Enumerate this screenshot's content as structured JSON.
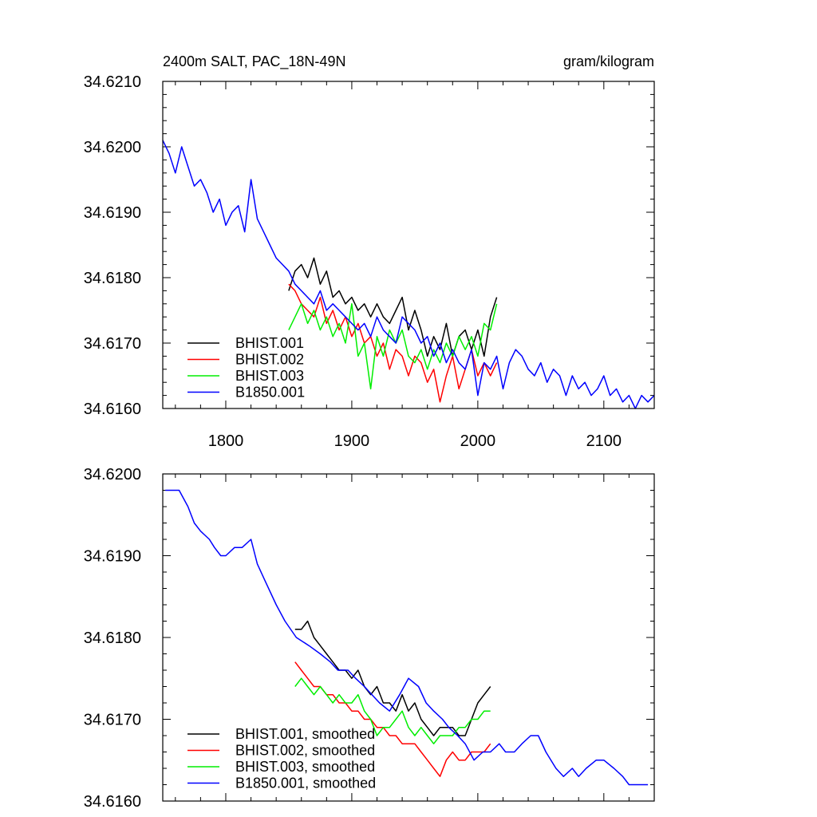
{
  "chart_data": [
    {
      "type": "line",
      "title": "2400m SALT, PAC_18N-49N",
      "units": "gram/kilogram",
      "xlim": [
        1750,
        2140
      ],
      "ylim": [
        34.616,
        34.621
      ],
      "x_ticks": [
        1800,
        1900,
        2000,
        2100
      ],
      "y_ticks": [
        "34.6160",
        "34.6170",
        "34.6180",
        "34.6190",
        "34.6200",
        "34.6210"
      ],
      "legend_position": "bottom-left",
      "series": [
        {
          "name": "BHIST.001",
          "color": "#000000",
          "x": [
            1850,
            1855,
            1860,
            1865,
            1870,
            1875,
            1880,
            1885,
            1890,
            1895,
            1900,
            1905,
            1910,
            1915,
            1920,
            1925,
            1930,
            1935,
            1940,
            1945,
            1950,
            1955,
            1960,
            1965,
            1970,
            1975,
            1980,
            1985,
            1990,
            1995,
            2000,
            2005,
            2010,
            2015
          ],
          "y": [
            34.6178,
            34.6181,
            34.6182,
            34.618,
            34.6183,
            34.6179,
            34.6181,
            34.6177,
            34.6178,
            34.6176,
            34.6177,
            34.6175,
            34.6176,
            34.6174,
            34.6176,
            34.6174,
            34.6173,
            34.6175,
            34.6177,
            34.6172,
            34.6175,
            34.6172,
            34.6168,
            34.6171,
            34.6169,
            34.6173,
            34.6168,
            34.6171,
            34.6172,
            34.6169,
            34.6172,
            34.6168,
            34.6174,
            34.6177
          ]
        },
        {
          "name": "BHIST.002",
          "color": "#ff0000",
          "x": [
            1850,
            1855,
            1860,
            1865,
            1870,
            1875,
            1880,
            1885,
            1890,
            1895,
            1900,
            1905,
            1910,
            1915,
            1920,
            1925,
            1930,
            1935,
            1940,
            1945,
            1950,
            1955,
            1960,
            1965,
            1970,
            1975,
            1980,
            1985,
            1990,
            1995,
            2000,
            2005,
            2010,
            2015
          ],
          "y": [
            34.6179,
            34.6178,
            34.6176,
            34.6175,
            34.6174,
            34.6177,
            34.6173,
            34.6175,
            34.6172,
            34.6174,
            34.6171,
            34.6173,
            34.617,
            34.6171,
            34.6168,
            34.617,
            34.6166,
            34.6169,
            34.6168,
            34.6165,
            34.6168,
            34.6167,
            34.6164,
            34.6166,
            34.6161,
            34.6165,
            34.6168,
            34.6163,
            34.6166,
            34.6169,
            34.6165,
            34.6167,
            34.6165,
            34.6167
          ]
        },
        {
          "name": "BHIST.003",
          "color": "#00ee00",
          "x": [
            1850,
            1855,
            1860,
            1865,
            1870,
            1875,
            1880,
            1885,
            1890,
            1895,
            1900,
            1905,
            1910,
            1915,
            1920,
            1925,
            1930,
            1935,
            1940,
            1945,
            1950,
            1955,
            1960,
            1965,
            1970,
            1975,
            1980,
            1985,
            1990,
            1995,
            2000,
            2005,
            2010,
            2015
          ],
          "y": [
            34.6172,
            34.6174,
            34.6176,
            34.6173,
            34.6175,
            34.6172,
            34.6174,
            34.6171,
            34.6173,
            34.617,
            34.6176,
            34.6168,
            34.617,
            34.6163,
            34.6171,
            34.6168,
            34.6172,
            34.617,
            34.6172,
            34.6168,
            34.6167,
            34.6169,
            34.6166,
            34.6169,
            34.6167,
            34.617,
            34.6168,
            34.6171,
            34.6169,
            34.6171,
            34.6168,
            34.6173,
            34.6172,
            34.6176
          ]
        },
        {
          "name": "B1850.001",
          "color": "#0000ff",
          "x": [
            1750,
            1755,
            1760,
            1765,
            1770,
            1775,
            1780,
            1785,
            1790,
            1795,
            1800,
            1805,
            1810,
            1815,
            1820,
            1825,
            1830,
            1835,
            1840,
            1845,
            1850,
            1855,
            1860,
            1865,
            1870,
            1875,
            1880,
            1885,
            1890,
            1895,
            1900,
            1905,
            1910,
            1915,
            1920,
            1925,
            1930,
            1935,
            1940,
            1945,
            1950,
            1955,
            1960,
            1965,
            1970,
            1975,
            1980,
            1985,
            1990,
            1995,
            2000,
            2005,
            2010,
            2015,
            2020,
            2025,
            2030,
            2035,
            2040,
            2045,
            2050,
            2055,
            2060,
            2065,
            2070,
            2075,
            2080,
            2085,
            2090,
            2095,
            2100,
            2105,
            2110,
            2115,
            2120,
            2125,
            2130,
            2135,
            2140
          ],
          "y": [
            34.6201,
            34.6199,
            34.6196,
            34.62,
            34.6197,
            34.6194,
            34.6195,
            34.6193,
            34.619,
            34.6192,
            34.6188,
            34.619,
            34.6191,
            34.6187,
            34.6195,
            34.6189,
            34.6187,
            34.6185,
            34.6183,
            34.6182,
            34.6181,
            34.6179,
            34.6178,
            34.6177,
            34.6176,
            34.6178,
            34.6175,
            34.6176,
            34.6175,
            34.6174,
            34.6173,
            34.6172,
            34.6173,
            34.6171,
            34.6174,
            34.6172,
            34.6171,
            34.617,
            34.6174,
            34.6173,
            34.6172,
            34.617,
            34.6171,
            34.6168,
            34.617,
            34.6167,
            34.6169,
            34.6167,
            34.6166,
            34.6169,
            34.6162,
            34.6167,
            34.6166,
            34.6168,
            34.6163,
            34.6167,
            34.6169,
            34.6168,
            34.6166,
            34.6165,
            34.6167,
            34.6164,
            34.6166,
            34.6165,
            34.6162,
            34.6165,
            34.6163,
            34.6164,
            34.6162,
            34.6163,
            34.6165,
            34.6162,
            34.6163,
            34.6161,
            34.6162,
            34.616,
            34.6162,
            34.6161,
            34.6162
          ]
        }
      ]
    },
    {
      "type": "line",
      "xlim": [
        1750,
        2140
      ],
      "ylim": [
        34.616,
        34.62
      ],
      "y_ticks": [
        "34.6160",
        "34.6170",
        "34.6180",
        "34.6190",
        "34.6200"
      ],
      "legend_position": "bottom-left",
      "series": [
        {
          "name": "BHIST.001, smoothed",
          "color": "#000000",
          "x": [
            1855,
            1860,
            1865,
            1870,
            1875,
            1880,
            1885,
            1890,
            1895,
            1900,
            1905,
            1910,
            1915,
            1920,
            1925,
            1930,
            1935,
            1940,
            1945,
            1950,
            1955,
            1960,
            1965,
            1970,
            1975,
            1980,
            1985,
            1990,
            1995,
            2000,
            2005,
            2010
          ],
          "y": [
            34.6181,
            34.6181,
            34.6182,
            34.618,
            34.6179,
            34.6178,
            34.6177,
            34.6176,
            34.6176,
            34.6175,
            34.6176,
            34.6174,
            34.6173,
            34.6174,
            34.6172,
            34.6172,
            34.6171,
            34.6173,
            34.6171,
            34.6172,
            34.617,
            34.6169,
            34.6168,
            34.6169,
            34.6169,
            34.6169,
            34.6168,
            34.6168,
            34.617,
            34.6172,
            34.6173,
            34.6174
          ]
        },
        {
          "name": "BHIST.002, smoothed",
          "color": "#ff0000",
          "x": [
            1855,
            1860,
            1865,
            1870,
            1875,
            1880,
            1885,
            1890,
            1895,
            1900,
            1905,
            1910,
            1915,
            1920,
            1925,
            1930,
            1935,
            1940,
            1945,
            1950,
            1955,
            1960,
            1965,
            1970,
            1975,
            1980,
            1985,
            1990,
            1995,
            2000,
            2005,
            2010
          ],
          "y": [
            34.6177,
            34.6176,
            34.6175,
            34.6174,
            34.6174,
            34.6173,
            34.6173,
            34.6172,
            34.6172,
            34.6171,
            34.6171,
            34.617,
            34.617,
            34.6169,
            34.6169,
            34.6168,
            34.6168,
            34.6167,
            34.6167,
            34.6167,
            34.6166,
            34.6165,
            34.6164,
            34.6163,
            34.6165,
            34.6166,
            34.6165,
            34.6165,
            34.6166,
            34.6166,
            34.6166,
            34.6167
          ]
        },
        {
          "name": "BHIST.003, smoothed",
          "color": "#00ee00",
          "x": [
            1855,
            1860,
            1865,
            1870,
            1875,
            1880,
            1885,
            1890,
            1895,
            1900,
            1905,
            1910,
            1915,
            1920,
            1925,
            1930,
            1935,
            1940,
            1945,
            1950,
            1955,
            1960,
            1965,
            1970,
            1975,
            1980,
            1985,
            1990,
            1995,
            2000,
            2005,
            2010
          ],
          "y": [
            34.6174,
            34.6175,
            34.6174,
            34.6173,
            34.6174,
            34.6173,
            34.6172,
            34.6173,
            34.6172,
            34.6172,
            34.6173,
            34.6171,
            34.617,
            34.6168,
            34.6169,
            34.6169,
            34.617,
            34.6171,
            34.6169,
            34.6168,
            34.6169,
            34.6168,
            34.6167,
            34.6168,
            34.6168,
            34.6168,
            34.6169,
            34.6169,
            34.617,
            34.617,
            34.6171,
            34.6171
          ]
        },
        {
          "name": "B1850.001, smoothed",
          "color": "#0000ff",
          "x": [
            1752,
            1757,
            1763,
            1770,
            1775,
            1780,
            1787,
            1791,
            1796,
            1800,
            1807,
            1813,
            1820,
            1825,
            1831,
            1840,
            1847,
            1856,
            1866,
            1875,
            1883,
            1889,
            1897,
            1903,
            1910,
            1916,
            1922,
            1930,
            1938,
            1945,
            1953,
            1959,
            1965,
            1972,
            1977,
            1984,
            1990,
            1997,
            2004,
            2010,
            2017,
            2022,
            2029,
            2035,
            2042,
            2048,
            2054,
            2062,
            2068,
            2075,
            2080,
            2086,
            2094,
            2100,
            2108,
            2115,
            2120,
            2126,
            2130,
            2135
          ],
          "y": [
            34.6198,
            34.6198,
            34.6198,
            34.6196,
            34.6194,
            34.6193,
            34.6192,
            34.6191,
            34.619,
            34.619,
            34.6191,
            34.6191,
            34.6192,
            34.6189,
            34.6187,
            34.6184,
            34.6182,
            34.618,
            34.6179,
            34.6178,
            34.6177,
            34.6176,
            34.6176,
            34.6175,
            34.6174,
            34.6173,
            34.6172,
            34.6171,
            34.6173,
            34.6175,
            34.6174,
            34.6172,
            34.6171,
            34.617,
            34.6169,
            34.6168,
            34.6167,
            34.6165,
            34.6166,
            34.6166,
            34.6167,
            34.6166,
            34.6166,
            34.6167,
            34.6168,
            34.6168,
            34.6166,
            34.6164,
            34.6163,
            34.6164,
            34.6163,
            34.6164,
            34.6165,
            34.6165,
            34.6164,
            34.6163,
            34.6162,
            34.6162,
            34.6162,
            34.6162
          ]
        }
      ]
    }
  ]
}
